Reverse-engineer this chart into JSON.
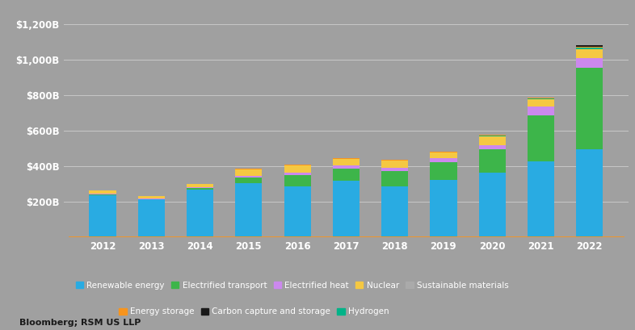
{
  "years": [
    "2012",
    "2013",
    "2014",
    "2015",
    "2016",
    "2017",
    "2018",
    "2019",
    "2020",
    "2021",
    "2022"
  ],
  "series": {
    "Renewable energy": [
      240,
      215,
      268,
      308,
      287,
      318,
      289,
      323,
      365,
      430,
      495
    ],
    "Electrified transport": [
      2,
      2,
      10,
      30,
      65,
      70,
      85,
      100,
      130,
      260,
      460
    ],
    "Electrified heat": [
      4,
      4,
      4,
      8,
      13,
      17,
      18,
      22,
      27,
      50,
      55
    ],
    "Nuclear": [
      18,
      12,
      18,
      38,
      42,
      38,
      42,
      36,
      50,
      38,
      48
    ],
    "Sustainable materials": [
      0,
      0,
      0,
      0,
      0,
      0,
      0,
      0,
      0,
      0,
      0
    ],
    "Energy storage": [
      2,
      2,
      2,
      2,
      3,
      4,
      4,
      4,
      5,
      6,
      7
    ],
    "Carbon capture and storage": [
      0,
      0,
      0,
      0,
      0,
      0,
      0,
      0,
      0,
      1,
      8
    ],
    "Hydrogen": [
      0,
      0,
      0,
      0,
      0,
      0,
      0,
      0,
      2,
      4,
      10
    ]
  },
  "stacking_order": [
    "Renewable energy",
    "Electrified transport",
    "Electrified heat",
    "Nuclear",
    "Sustainable materials",
    "Hydrogen",
    "Energy storage",
    "Carbon capture and storage"
  ],
  "colors": {
    "Renewable energy": "#29ABE2",
    "Electrified transport": "#3DB54A",
    "Electrified heat": "#CC88EE",
    "Nuclear": "#F5C842",
    "Sustainable materials": "#AAAAAA",
    "Energy storage": "#F7941D",
    "Carbon capture and storage": "#1A1A1A",
    "Hydrogen": "#00B388"
  },
  "legend_order": [
    "Renewable energy",
    "Electrified transport",
    "Electrified heat",
    "Nuclear",
    "Sustainable materials",
    "Energy storage",
    "Carbon capture and storage",
    "Hydrogen"
  ],
  "ylim": [
    0,
    1300
  ],
  "yticks": [
    0,
    200,
    400,
    600,
    800,
    1000,
    1200
  ],
  "ytick_labels": [
    "",
    "$200B",
    "$400B",
    "$600B",
    "$800B",
    "$1,000B",
    "$1,200B"
  ],
  "background_color": "#A0A0A0",
  "plot_bg_color": "#A0A0A0",
  "grid_color": "#C8C8C8",
  "label_color": "#FFFFFF",
  "source_text": "Bloomberg; RSM US LLP",
  "bar_width": 0.55
}
